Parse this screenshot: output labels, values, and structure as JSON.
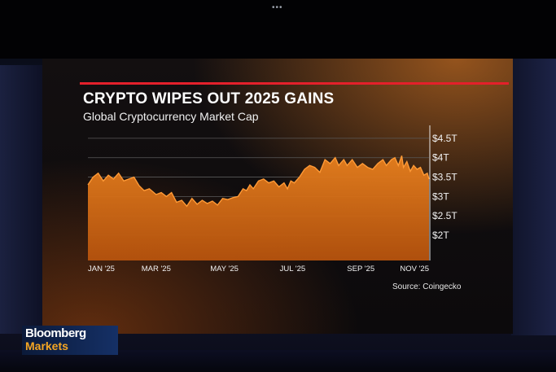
{
  "chart_data": {
    "type": "area",
    "title": "CRYPTO WIPES OUT 2025 GAINS",
    "subtitle": "Global Cryptocurrency Market Cap",
    "source": "Source: Coingecko",
    "x_tick_labels": [
      "JAN '25",
      "MAR '25",
      "MAY '25",
      "JUL '25",
      "SEP '25",
      "NOV '25"
    ],
    "x_ticks_pos": [
      0,
      2,
      4,
      6,
      8,
      10
    ],
    "y_tick_labels": [
      "$4.5T",
      "$4T",
      "$3.5T",
      "$3T",
      "$2.5T",
      "$2T"
    ],
    "y_ticks": [
      4.5,
      4.0,
      3.5,
      3.0,
      2.5,
      2.0
    ],
    "ylim": [
      1.35,
      4.75
    ],
    "xlim": [
      0,
      10
    ],
    "grid": true,
    "series": [
      {
        "values": [
          [
            0.0,
            3.3
          ],
          [
            0.15,
            3.5
          ],
          [
            0.3,
            3.6
          ],
          [
            0.45,
            3.4
          ],
          [
            0.6,
            3.55
          ],
          [
            0.75,
            3.45
          ],
          [
            0.9,
            3.6
          ],
          [
            1.05,
            3.4
          ],
          [
            1.2,
            3.45
          ],
          [
            1.35,
            3.5
          ],
          [
            1.5,
            3.28
          ],
          [
            1.65,
            3.15
          ],
          [
            1.8,
            3.2
          ],
          [
            2.0,
            3.05
          ],
          [
            2.15,
            3.1
          ],
          [
            2.3,
            3.0
          ],
          [
            2.45,
            3.1
          ],
          [
            2.6,
            2.85
          ],
          [
            2.75,
            2.9
          ],
          [
            2.9,
            2.75
          ],
          [
            3.05,
            2.95
          ],
          [
            3.2,
            2.8
          ],
          [
            3.35,
            2.9
          ],
          [
            3.5,
            2.82
          ],
          [
            3.65,
            2.88
          ],
          [
            3.8,
            2.78
          ],
          [
            3.95,
            2.95
          ],
          [
            4.1,
            2.92
          ],
          [
            4.25,
            2.97
          ],
          [
            4.4,
            3.0
          ],
          [
            4.55,
            3.2
          ],
          [
            4.65,
            3.15
          ],
          [
            4.75,
            3.3
          ],
          [
            4.85,
            3.2
          ],
          [
            5.0,
            3.4
          ],
          [
            5.15,
            3.45
          ],
          [
            5.3,
            3.35
          ],
          [
            5.45,
            3.4
          ],
          [
            5.6,
            3.25
          ],
          [
            5.75,
            3.35
          ],
          [
            5.85,
            3.2
          ],
          [
            5.95,
            3.4
          ],
          [
            6.05,
            3.35
          ],
          [
            6.2,
            3.5
          ],
          [
            6.35,
            3.7
          ],
          [
            6.5,
            3.8
          ],
          [
            6.65,
            3.75
          ],
          [
            6.8,
            3.62
          ],
          [
            6.95,
            3.95
          ],
          [
            7.1,
            3.85
          ],
          [
            7.25,
            4.0
          ],
          [
            7.35,
            3.8
          ],
          [
            7.5,
            3.95
          ],
          [
            7.6,
            3.8
          ],
          [
            7.75,
            3.95
          ],
          [
            7.9,
            3.75
          ],
          [
            8.05,
            3.85
          ],
          [
            8.2,
            3.75
          ],
          [
            8.35,
            3.7
          ],
          [
            8.5,
            3.85
          ],
          [
            8.65,
            3.95
          ],
          [
            8.75,
            3.8
          ],
          [
            8.9,
            3.95
          ],
          [
            9.0,
            4.0
          ],
          [
            9.1,
            3.8
          ],
          [
            9.2,
            4.05
          ],
          [
            9.25,
            3.75
          ],
          [
            9.35,
            3.9
          ],
          [
            9.45,
            3.65
          ],
          [
            9.55,
            3.8
          ],
          [
            9.65,
            3.7
          ],
          [
            9.75,
            3.75
          ],
          [
            9.85,
            3.55
          ],
          [
            9.95,
            3.6
          ],
          [
            10.0,
            3.45
          ]
        ]
      }
    ]
  },
  "branding": {
    "line1": "Bloomberg",
    "line2": "Markets"
  },
  "colors": {
    "accent": "#e4202b",
    "line": "#ff8a24",
    "fill_top": "#e8801e",
    "fill_bottom": "#c45a0f",
    "markets": "#f5a623"
  }
}
